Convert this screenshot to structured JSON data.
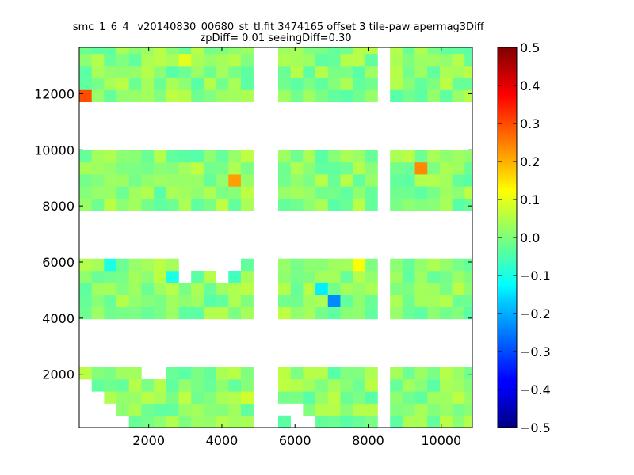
{
  "chart_data": {
    "type": "heatmap",
    "title": "_smc_1_6_4_ v20140830_00680_st_tl.fit 3474165 offset 3 tile-paw apermag3Diff",
    "subtitle": "zpDiff= 0.01 seeingDiff=0.30",
    "xlabel": "",
    "ylabel": "",
    "xlim": [
      100,
      10850
    ],
    "ylim": [
      100,
      13650
    ],
    "xticks": [
      "2000",
      "4000",
      "6000",
      "8000",
      "10000"
    ],
    "xtick_values": [
      2000,
      4000,
      6000,
      8000,
      10000
    ],
    "yticks": [
      "2000",
      "4000",
      "6000",
      "8000",
      "10000",
      "12000"
    ],
    "ytick_values": [
      2000,
      4000,
      6000,
      8000,
      10000,
      12000
    ],
    "colorbar": {
      "colormap": "jet",
      "range": [
        -0.5,
        0.5
      ],
      "ticks": [
        "0.5",
        "0.4",
        "0.3",
        "0.2",
        "0.1",
        "0.0",
        "−0.1",
        "−0.2",
        "−0.3",
        "−0.4",
        "−0.5"
      ],
      "tick_values": [
        0.5,
        0.4,
        0.3,
        0.2,
        0.1,
        0.0,
        -0.1,
        -0.2,
        -0.3,
        -0.4,
        -0.5
      ]
    },
    "grid": false,
    "cell_size": [
      340,
      430
    ],
    "x0": 100,
    "y0": 100,
    "row_groups": [
      {
        "rows": [
          0,
          1,
          2,
          3,
          4
        ]
      },
      {
        "rows": [
          9,
          10,
          11,
          12,
          13
        ]
      },
      {
        "rows": [
          18,
          19,
          20,
          21,
          22
        ]
      },
      {
        "rows": [
          27,
          28,
          29,
          30,
          31
        ]
      }
    ],
    "col_groups": [
      {
        "cols": [
          0,
          1,
          2,
          3,
          4,
          5
        ]
      },
      {
        "cols": [
          6,
          7,
          8,
          9,
          10,
          11,
          12,
          13
        ]
      },
      {
        "cols": [
          16,
          17,
          18,
          19,
          20,
          21,
          22,
          23
        ]
      },
      {
        "cols": [
          25,
          26,
          27,
          28,
          29,
          30,
          31
        ]
      }
    ],
    "cells": [
      [
        0,
        27,
        0.3
      ],
      [
        12,
        20,
        0.22
      ],
      [
        27,
        21,
        0.24
      ],
      [
        22,
        13,
        0.12
      ],
      [
        8,
        30,
        0.1
      ],
      [
        4,
        25,
        0.1
      ],
      [
        2,
        13,
        -0.1
      ],
      [
        12,
        12,
        -0.06
      ],
      [
        7,
        12,
        -0.1
      ],
      [
        19,
        11,
        -0.14
      ],
      [
        20,
        10,
        -0.24
      ],
      [
        30,
        8,
        -0.08
      ],
      [
        13,
        2,
        0.08
      ],
      [
        9,
        5,
        0.06
      ],
      [
        19,
        16,
        0.08
      ],
      [
        28,
        17,
        0.06
      ],
      [
        30,
        23,
        0.06
      ],
      [
        7,
        30,
        0.04
      ]
    ],
    "base_values": [
      -0.04,
      0.06
    ],
    "blank_cells": [
      [
        0,
        0
      ],
      [
        0,
        1
      ],
      [
        0,
        2
      ],
      [
        0,
        3
      ],
      [
        1,
        0
      ],
      [
        1,
        1
      ],
      [
        1,
        2
      ],
      [
        2,
        0
      ],
      [
        2,
        1
      ],
      [
        3,
        0
      ],
      [
        5,
        4
      ],
      [
        5,
        5
      ],
      [
        6,
        4
      ],
      [
        6,
        5
      ],
      [
        8,
        12
      ],
      [
        8,
        13
      ],
      [
        9,
        13
      ],
      [
        10,
        13
      ],
      [
        11,
        6
      ],
      [
        12,
        6
      ],
      [
        13,
        6
      ],
      [
        11,
        12
      ],
      [
        11,
        13
      ],
      [
        12,
        13
      ],
      [
        16,
        1
      ],
      [
        17,
        0
      ],
      [
        17,
        1
      ],
      [
        18,
        0
      ],
      [
        19,
        6
      ],
      [
        20,
        6
      ],
      [
        25,
        25
      ],
      [
        26,
        25
      ],
      [
        27,
        24
      ]
    ]
  }
}
